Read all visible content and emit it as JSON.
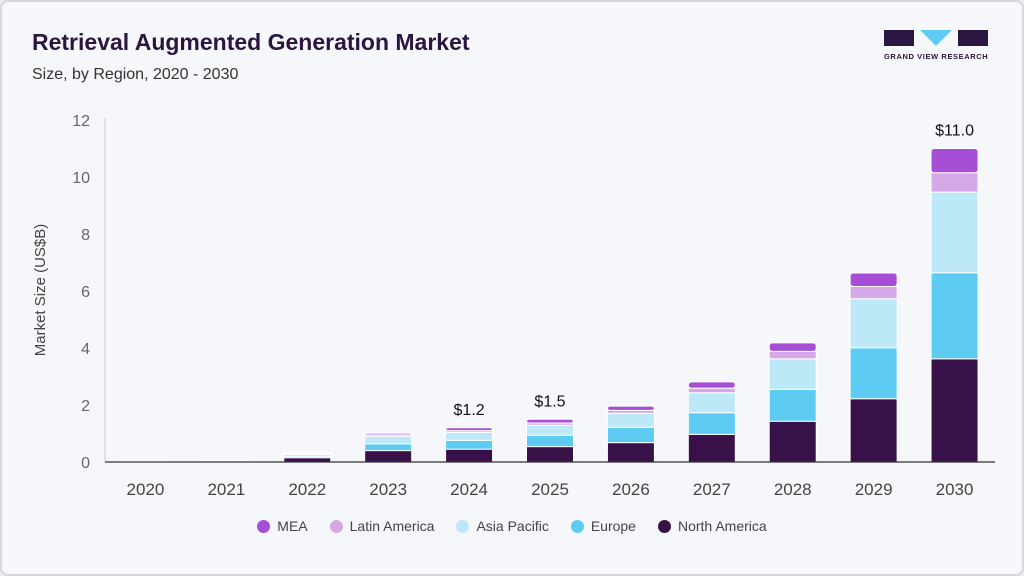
{
  "title": "Retrieval Augmented Generation Market",
  "subtitle": "Size, by Region, 2020 - 2030",
  "logo": {
    "text": "GRAND VIEW RESEARCH"
  },
  "chart_data": {
    "type": "bar",
    "stacked": true,
    "categories": [
      "2020",
      "2021",
      "2022",
      "2023",
      "2024",
      "2025",
      "2026",
      "2027",
      "2028",
      "2029",
      "2030"
    ],
    "ylabel": "Market Size (US$B)",
    "ylim": [
      0,
      12
    ],
    "yticks": [
      0,
      2,
      4,
      6,
      8,
      10,
      12
    ],
    "grid": false,
    "legend_position": "bottom",
    "series": [
      {
        "name": "North America",
        "color": "#371147",
        "values": [
          0.01,
          0.04,
          0.15,
          0.4,
          0.45,
          0.54,
          0.68,
          0.97,
          1.43,
          2.22,
          3.62
        ]
      },
      {
        "name": "Europe",
        "color": "#5ecbf3",
        "values": [
          0.005,
          0.01,
          0.05,
          0.24,
          0.31,
          0.4,
          0.54,
          0.76,
          1.12,
          1.79,
          3.02
        ]
      },
      {
        "name": "Asia Pacific",
        "color": "#bde8f8",
        "values": [
          0.005,
          0.01,
          0.07,
          0.26,
          0.28,
          0.35,
          0.49,
          0.7,
          1.07,
          1.72,
          2.83
        ]
      },
      {
        "name": "Latin America",
        "color": "#d5a8e8",
        "values": [
          0.0,
          0.005,
          0.02,
          0.05,
          0.06,
          0.08,
          0.1,
          0.16,
          0.26,
          0.43,
          0.68
        ]
      },
      {
        "name": "MEA",
        "color": "#a64fd6",
        "values": [
          0.0,
          0.005,
          0.02,
          0.06,
          0.1,
          0.13,
          0.15,
          0.22,
          0.3,
          0.47,
          0.85
        ]
      }
    ],
    "data_labels": [
      {
        "category": "2024",
        "text": "$1.2"
      },
      {
        "category": "2025",
        "text": "$1.5"
      },
      {
        "category": "2030",
        "text": "$11.0"
      }
    ],
    "legend_order": [
      "MEA",
      "Latin America",
      "Asia Pacific",
      "Europe",
      "North America"
    ]
  }
}
